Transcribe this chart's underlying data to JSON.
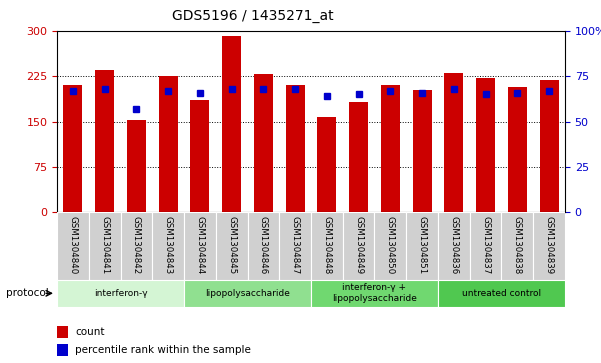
{
  "title": "GDS5196 / 1435271_at",
  "samples": [
    "GSM1304840",
    "GSM1304841",
    "GSM1304842",
    "GSM1304843",
    "GSM1304844",
    "GSM1304845",
    "GSM1304846",
    "GSM1304847",
    "GSM1304848",
    "GSM1304849",
    "GSM1304850",
    "GSM1304851",
    "GSM1304836",
    "GSM1304837",
    "GSM1304838",
    "GSM1304839"
  ],
  "bar_heights": [
    210,
    235,
    152,
    225,
    185,
    291,
    228,
    210,
    158,
    183,
    210,
    203,
    230,
    222,
    207,
    218
  ],
  "blue_markers": [
    67,
    68,
    57,
    67,
    66,
    68,
    68,
    68,
    64,
    65,
    67,
    66,
    68,
    65,
    66,
    67
  ],
  "bar_color": "#CC0000",
  "blue_color": "#0000CC",
  "groups": [
    {
      "label": "interferon-γ",
      "start": 0,
      "end": 4,
      "color": "#d4f5d4"
    },
    {
      "label": "lipopolysaccharide",
      "start": 4,
      "end": 8,
      "color": "#90e090"
    },
    {
      "label": "interferon-γ +\nlipopolysaccharide",
      "start": 8,
      "end": 12,
      "color": "#70d870"
    },
    {
      "label": "untreated control",
      "start": 12,
      "end": 16,
      "color": "#50c850"
    }
  ],
  "ylim_left": [
    0,
    300
  ],
  "ylim_right": [
    0,
    100
  ],
  "yticks_left": [
    0,
    75,
    150,
    225,
    300
  ],
  "yticks_right": [
    0,
    25,
    50,
    75,
    100
  ],
  "ylabel_left_color": "#CC0000",
  "ylabel_right_color": "#0000CC",
  "background_color": "#ffffff",
  "plot_bg_color": "#ffffff",
  "sample_box_color": "#d0d0d0",
  "protocol_label": "protocol"
}
